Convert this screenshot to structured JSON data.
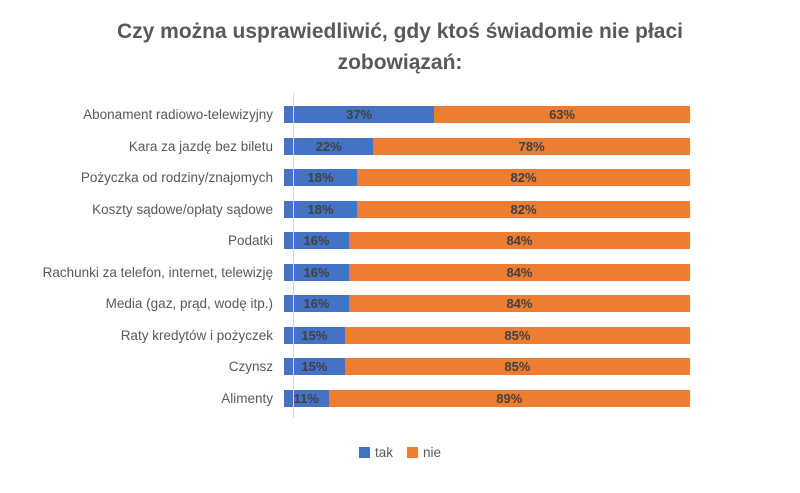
{
  "chart_data": {
    "type": "bar",
    "orientation": "horizontal",
    "stacked": true,
    "title": "Czy można usprawiedliwić, gdy ktoś świadomie nie płaci zobowiązań:",
    "categories": [
      "Abonament radiowo-telewizyjny",
      "Kara za jazdę bez biletu",
      "Pożyczka od rodziny/znajomych",
      "Koszty sądowe/opłaty sądowe",
      "Podatki",
      "Rachunki za telefon, internet, telewizję",
      "Media (gaz, prąd, wodę itp.)",
      "Raty kredytów i pożyczek",
      "Czynsz",
      "Alimenty"
    ],
    "series": [
      {
        "name": "tak",
        "color": "#4472C4",
        "values": [
          37,
          22,
          18,
          18,
          16,
          16,
          16,
          15,
          15,
          11
        ]
      },
      {
        "name": "nie",
        "color": "#ED7D31",
        "values": [
          63,
          78,
          82,
          82,
          84,
          84,
          84,
          85,
          85,
          89
        ]
      }
    ],
    "value_suffix": "%",
    "xlim": [
      0,
      100
    ],
    "legend_position": "bottom",
    "grid": false,
    "colors": {
      "title": "#595959",
      "category_labels": "#595959",
      "data_labels": "#404040",
      "axis_line": "#D9D9D9",
      "background": "#FFFFFF"
    }
  }
}
